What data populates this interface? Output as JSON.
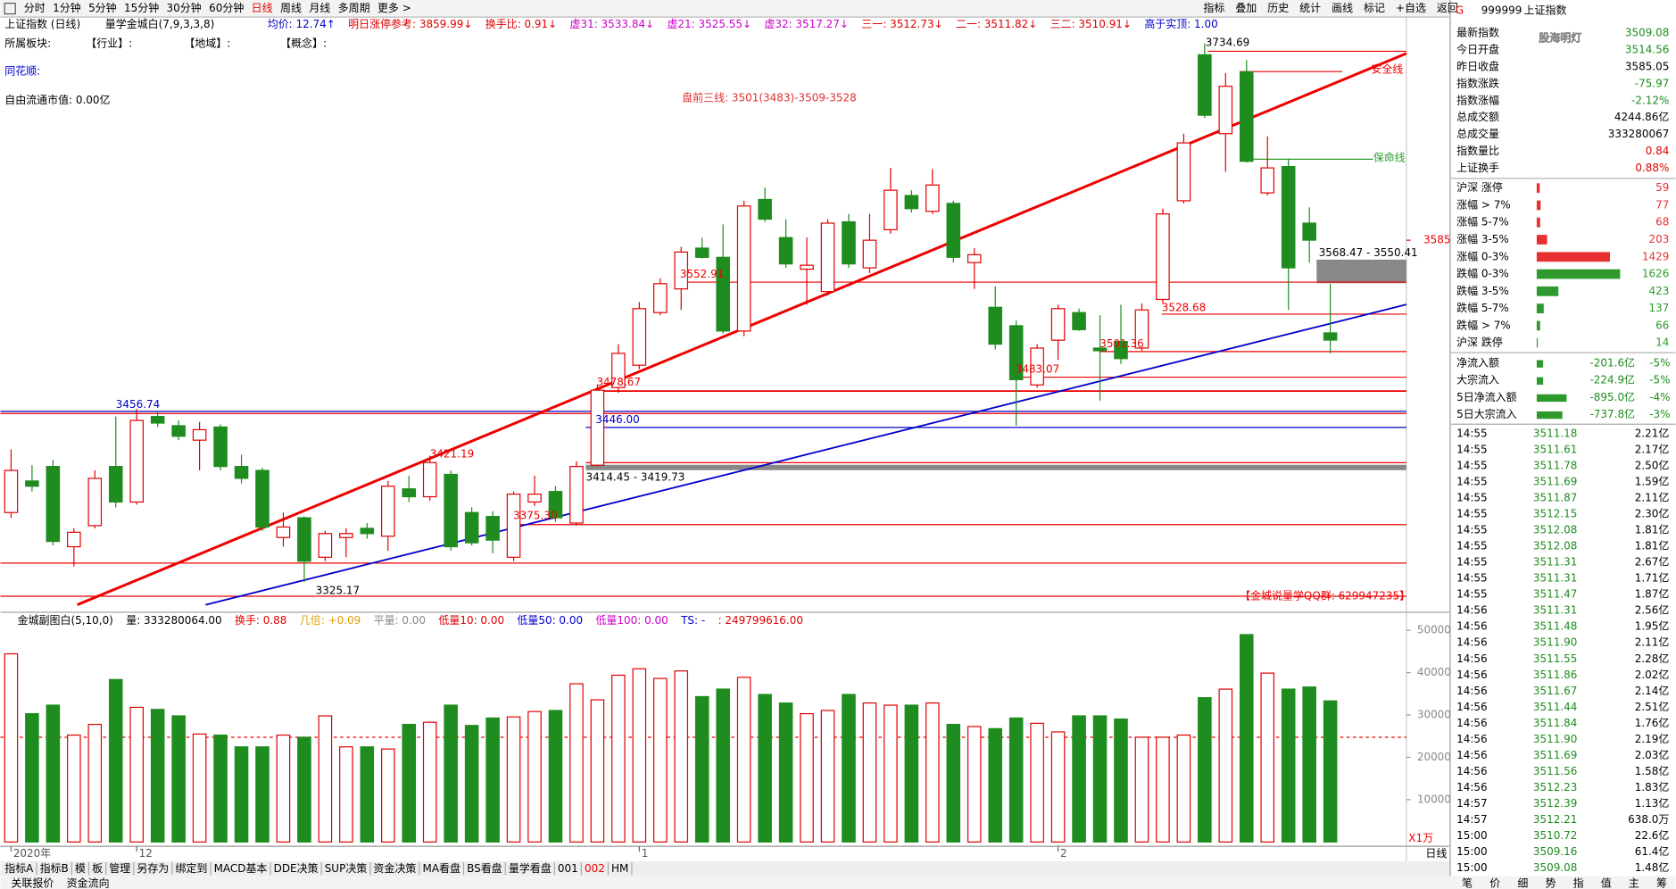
{
  "toolbar": {
    "periods": [
      "分时",
      "1分钟",
      "5分钟",
      "15分钟",
      "30分钟",
      "60分钟",
      "日线",
      "周线",
      "月线",
      "多周期",
      "更多 >"
    ],
    "selected_index": 6,
    "tools": [
      "指标",
      "叠加",
      "历史",
      "统计",
      "画线",
      "标记",
      "+自选",
      "返回"
    ]
  },
  "info": {
    "name": "上证指数 (日线)",
    "indicator": "量学金城白(7,9,3,3,8)",
    "items": [
      {
        "text": "均价: 12.74↑",
        "color": "#0000cc"
      },
      {
        "text": "明日涨停参考: 3859.99↓",
        "color": "#dd0000"
      },
      {
        "text": "换手比: 0.91↓",
        "color": "#dd0000"
      },
      {
        "text": "虚31: 3533.84↓",
        "color": "#cc00cc"
      },
      {
        "text": "虚21: 3525.55↓",
        "color": "#cc00cc"
      },
      {
        "text": "虚32: 3517.27↓",
        "color": "#cc00cc"
      },
      {
        "text": "三一: 3512.73↓",
        "color": "#dd0000"
      },
      {
        "text": "二一: 3511.82↓",
        "color": "#dd0000"
      },
      {
        "text": "三二: 3510.91↓",
        "color": "#dd0000"
      },
      {
        "text": "高于实顶: 1.00",
        "color": "#0000cc"
      }
    ]
  },
  "left": {
    "sector": "所属板块:",
    "industry": "【行业】:",
    "region": "【地域】:",
    "concept": "【概念】:",
    "ths": "同花顺:",
    "cap": "自由流通市值: 0.00亿"
  },
  "chart_data": [
    {
      "type": "candlestick",
      "categories": [
        "2020年",
        null,
        null,
        null,
        null,
        null,
        "12",
        null,
        null,
        null,
        null,
        null,
        null,
        null,
        null,
        null,
        null,
        null,
        null,
        null,
        null,
        null,
        null,
        null,
        null,
        null,
        null,
        null,
        null,
        null,
        "1",
        null,
        null,
        null,
        null,
        null,
        null,
        null,
        null,
        null,
        null,
        null,
        null,
        null,
        null,
        null,
        null,
        null,
        null,
        null,
        "2",
        null,
        null,
        null,
        null,
        null,
        null,
        null,
        null,
        null,
        null,
        null,
        null,
        null
      ],
      "open": [
        3378,
        3402,
        3413,
        3352,
        3368,
        3413,
        3386,
        3451,
        3444,
        3433,
        3443,
        3413,
        3410,
        3359,
        3374,
        3344,
        3359,
        3366,
        3360,
        3396,
        3390,
        3407,
        3378,
        3375,
        3344,
        3386,
        3394,
        3370,
        3414,
        3473,
        3490,
        3530,
        3548,
        3579,
        3572,
        3516,
        3616,
        3587,
        3563,
        3546,
        3599,
        3564,
        3593,
        3619,
        3607,
        3613,
        3568,
        3534,
        3520,
        3475,
        3509,
        3530,
        3503,
        3508,
        3503,
        3540,
        3615,
        3726,
        3666,
        3713,
        3621,
        3641,
        3598,
        3514.56
      ],
      "high": [
        3426,
        3414,
        3418,
        3366,
        3410,
        3451,
        3456.74,
        3455,
        3448,
        3447,
        3445,
        3422,
        3412,
        3378,
        3375,
        3364,
        3366,
        3370,
        3402,
        3406,
        3421.19,
        3410,
        3382,
        3379,
        3394,
        3406,
        3398,
        3417,
        3475,
        3506,
        3538,
        3556,
        3580,
        3587,
        3597,
        3615,
        3625,
        3601,
        3587,
        3601,
        3605,
        3605,
        3640,
        3623,
        3639,
        3615,
        3579,
        3550,
        3524,
        3506,
        3536,
        3533,
        3528,
        3536,
        3537,
        3609,
        3666,
        3734.69,
        3712,
        3722,
        3664,
        3647,
        3610,
        3552
      ],
      "low": [
        3374,
        3394,
        3353,
        3337,
        3366,
        3382,
        3384,
        3443,
        3433,
        3410,
        3410,
        3400,
        3364,
        3352,
        3325.17,
        3341,
        3344,
        3358,
        3349,
        3386,
        3387,
        3349,
        3353,
        3347,
        3341,
        3383,
        3371,
        3368,
        3413,
        3469,
        3487,
        3528,
        3532,
        3571,
        3514,
        3512,
        3599,
        3564,
        3536,
        3543,
        3564,
        3560,
        3590,
        3606,
        3605,
        3568,
        3548,
        3502,
        3444,
        3473,
        3494,
        3516,
        3463,
        3491,
        3501,
        3537,
        3613,
        3678,
        3637,
        3644,
        3619,
        3532,
        3568,
        3499
      ],
      "close": [
        3410,
        3398,
        3356,
        3363,
        3404,
        3386,
        3448,
        3446,
        3436,
        3441,
        3413,
        3404,
        3367,
        3367,
        3341,
        3362,
        3362,
        3362,
        3398,
        3390,
        3416,
        3352,
        3355,
        3357,
        3392,
        3392,
        3374,
        3413,
        3471,
        3499,
        3533,
        3552,
        3576,
        3572,
        3516,
        3611,
        3601,
        3567,
        3566,
        3598,
        3567,
        3585,
        3623,
        3609,
        3627,
        3572,
        3574,
        3506,
        3479,
        3503,
        3533,
        3517,
        3501,
        3495,
        3532,
        3605,
        3659,
        3680,
        3702,
        3645,
        3640,
        3564,
        3585.05,
        3509.08
      ],
      "up_color": "#e00000",
      "down_color": "#1e8c1e",
      "ylim": [
        3303,
        3753
      ],
      "yticks": [
        3585
      ],
      "annotations": [
        "盘前三线: 3501(3483)-3509-3528",
        "安全线",
        "保命线",
        "3734.69",
        "3568.47 - 3550.41",
        "3552.91",
        "3528.68",
        "3501.36",
        "3483.07",
        "3478.67",
        "3446.00",
        "3456.74",
        "3421.19",
        "3414.45 - 3419.73",
        "3375.30",
        "3325.17",
        "【金城说量学QQ群: 629947235】"
      ],
      "period_label": "日线"
    },
    {
      "type": "bar",
      "info": [
        {
          "text": "金城副图白(5,10,0)",
          "color": "#000000"
        },
        {
          "text": "量: 333280064.00",
          "color": "#000000"
        },
        {
          "text": "换手: 0.88",
          "color": "#dd0000"
        },
        {
          "text": "几倍: +0.09",
          "color": "#e0a000"
        },
        {
          "text": "平量: 0.00",
          "color": "#888888"
        },
        {
          "text": "低量10: 0.00",
          "color": "#dd0000"
        },
        {
          "text": "低量50: 0.00",
          "color": "#0000cc"
        },
        {
          "text": "低量100: 0.00",
          "color": "#cc00cc"
        },
        {
          "text": "TS: -",
          "color": "#0000cc"
        },
        {
          "text": ": 249799616.00",
          "color": "#dd0000"
        }
      ],
      "values": [
        44440,
        30300,
        32320,
        25250,
        27775,
        38380,
        31815,
        31310,
        29795,
        25500,
        25250,
        22470,
        22470,
        25250,
        24745,
        29795,
        22470,
        22470,
        21970,
        27775,
        28280,
        32320,
        27520,
        29290,
        29540,
        30805,
        31060,
        37370,
        33580,
        39390,
        40905,
        38630,
        40400,
        34340,
        36110,
        38885,
        34845,
        32825,
        30300,
        31060,
        34845,
        32825,
        32320,
        32320,
        32825,
        27775,
        27270,
        26765,
        29290,
        28030,
        26010,
        29795,
        29795,
        29040,
        24745,
        24745,
        25250,
        34090,
        36110,
        48985,
        39895,
        36110,
        36610,
        33328
      ],
      "ylim": [
        0,
        53000
      ],
      "yticks": [
        10000,
        20000,
        30000,
        40000,
        50000
      ],
      "unit": "X1万"
    }
  ],
  "tabs": {
    "items": [
      "指标A",
      "指标B",
      "模",
      "板",
      "管理",
      "另存为",
      "绑定到",
      "MACD基本",
      "DDE决策",
      "SUP决策",
      "资金决策",
      "MA看盘",
      "BS看盘",
      "量学看盘",
      "001",
      "002",
      "HM"
    ],
    "selected_index": 15,
    "bottom": [
      "关联报价",
      "资金流向"
    ]
  },
  "quote": {
    "mark": "G",
    "code": "999999",
    "name": "上证指数",
    "watermark": "股海明灯",
    "stats": [
      {
        "label": "最新指数",
        "value": "3509.08",
        "color": "#1e8c1e"
      },
      {
        "label": "今日开盘",
        "value": "3514.56",
        "color": "#1e8c1e"
      },
      {
        "label": "昨日收盘",
        "value": "3585.05",
        "color": "#000000"
      },
      {
        "label": "指数涨跌",
        "value": "-75.97",
        "color": "#1e8c1e"
      },
      {
        "label": "指数涨幅",
        "value": "-2.12%",
        "color": "#1e8c1e"
      },
      {
        "label": "总成交额",
        "value": "4244.86亿",
        "color": "#000000"
      },
      {
        "label": "总成交量",
        "value": "333280067",
        "color": "#000000"
      },
      {
        "label": "指数量比",
        "value": "0.84",
        "color": "#dd0000"
      },
      {
        "label": "上证换手",
        "value": "0.88%",
        "color": "#dd0000"
      }
    ],
    "breadth": [
      {
        "label": "沪深 涨停",
        "count": 59,
        "color": "#e83030"
      },
      {
        "label": "涨幅 > 7%",
        "count": 77,
        "color": "#e83030"
      },
      {
        "label": "涨幅 5-7%",
        "count": 68,
        "color": "#e83030"
      },
      {
        "label": "涨幅 3-5%",
        "count": 203,
        "color": "#e83030"
      },
      {
        "label": "涨幅 0-3%",
        "count": 1429,
        "color": "#e83030"
      },
      {
        "label": "跌幅 0-3%",
        "count": 1626,
        "color": "#2e9a2e"
      },
      {
        "label": "跌幅 3-5%",
        "count": 423,
        "color": "#2e9a2e"
      },
      {
        "label": "跌幅 5-7%",
        "count": 137,
        "color": "#2e9a2e"
      },
      {
        "label": "跌幅 > 7%",
        "count": 66,
        "color": "#2e9a2e"
      },
      {
        "label": "沪深 跌停",
        "count": 14,
        "color": "#2e9a2e"
      }
    ],
    "flows": [
      {
        "label": "净流入额",
        "amount": "-201.6亿",
        "pct": "-5%"
      },
      {
        "label": "大宗流入",
        "amount": "-224.9亿",
        "pct": "-5%"
      },
      {
        "label": "5日净流入额",
        "amount": "-895.0亿",
        "pct": "-4%"
      },
      {
        "label": "5日大宗流入",
        "amount": "-737.8亿",
        "pct": "-3%"
      }
    ],
    "ticks": [
      {
        "time": "14:55",
        "price": "3511.18",
        "volume": "2.21亿"
      },
      {
        "time": "14:55",
        "price": "3511.61",
        "volume": "2.17亿"
      },
      {
        "time": "14:55",
        "price": "3511.78",
        "volume": "2.50亿"
      },
      {
        "time": "14:55",
        "price": "3511.69",
        "volume": "1.59亿"
      },
      {
        "time": "14:55",
        "price": "3511.87",
        "volume": "2.11亿"
      },
      {
        "time": "14:55",
        "price": "3512.15",
        "volume": "2.30亿"
      },
      {
        "time": "14:55",
        "price": "3512.08",
        "volume": "1.81亿"
      },
      {
        "time": "14:55",
        "price": "3512.08",
        "volume": "1.81亿"
      },
      {
        "time": "14:55",
        "price": "3511.31",
        "volume": "2.67亿"
      },
      {
        "time": "14:55",
        "price": "3511.31",
        "volume": "1.71亿"
      },
      {
        "time": "14:55",
        "price": "3511.47",
        "volume": "1.87亿"
      },
      {
        "time": "14:56",
        "price": "3511.31",
        "volume": "2.56亿"
      },
      {
        "time": "14:56",
        "price": "3511.48",
        "volume": "1.95亿"
      },
      {
        "time": "14:56",
        "price": "3511.90",
        "volume": "2.11亿"
      },
      {
        "time": "14:56",
        "price": "3511.55",
        "volume": "2.28亿"
      },
      {
        "time": "14:56",
        "price": "3511.86",
        "volume": "2.02亿"
      },
      {
        "time": "14:56",
        "price": "3511.67",
        "volume": "2.14亿"
      },
      {
        "time": "14:56",
        "price": "3511.44",
        "volume": "2.51亿"
      },
      {
        "time": "14:56",
        "price": "3511.84",
        "volume": "1.76亿"
      },
      {
        "time": "14:56",
        "price": "3511.90",
        "volume": "2.19亿"
      },
      {
        "time": "14:56",
        "price": "3511.69",
        "volume": "2.03亿"
      },
      {
        "time": "14:56",
        "price": "3511.56",
        "volume": "1.58亿"
      },
      {
        "time": "14:56",
        "price": "3512.23",
        "volume": "1.83亿"
      },
      {
        "time": "14:57",
        "price": "3512.39",
        "volume": "1.13亿"
      },
      {
        "time": "14:57",
        "price": "3512.21",
        "volume": "638.0万"
      },
      {
        "time": "15:00",
        "price": "3510.72",
        "volume": "22.6亿"
      },
      {
        "time": "15:00",
        "price": "3509.16",
        "volume": "61.4亿"
      },
      {
        "time": "15:00",
        "price": "3509.08",
        "volume": "1.48亿"
      }
    ],
    "tabs": [
      "笔",
      "价",
      "细",
      "势",
      "指",
      "值",
      "主",
      "筹"
    ]
  }
}
